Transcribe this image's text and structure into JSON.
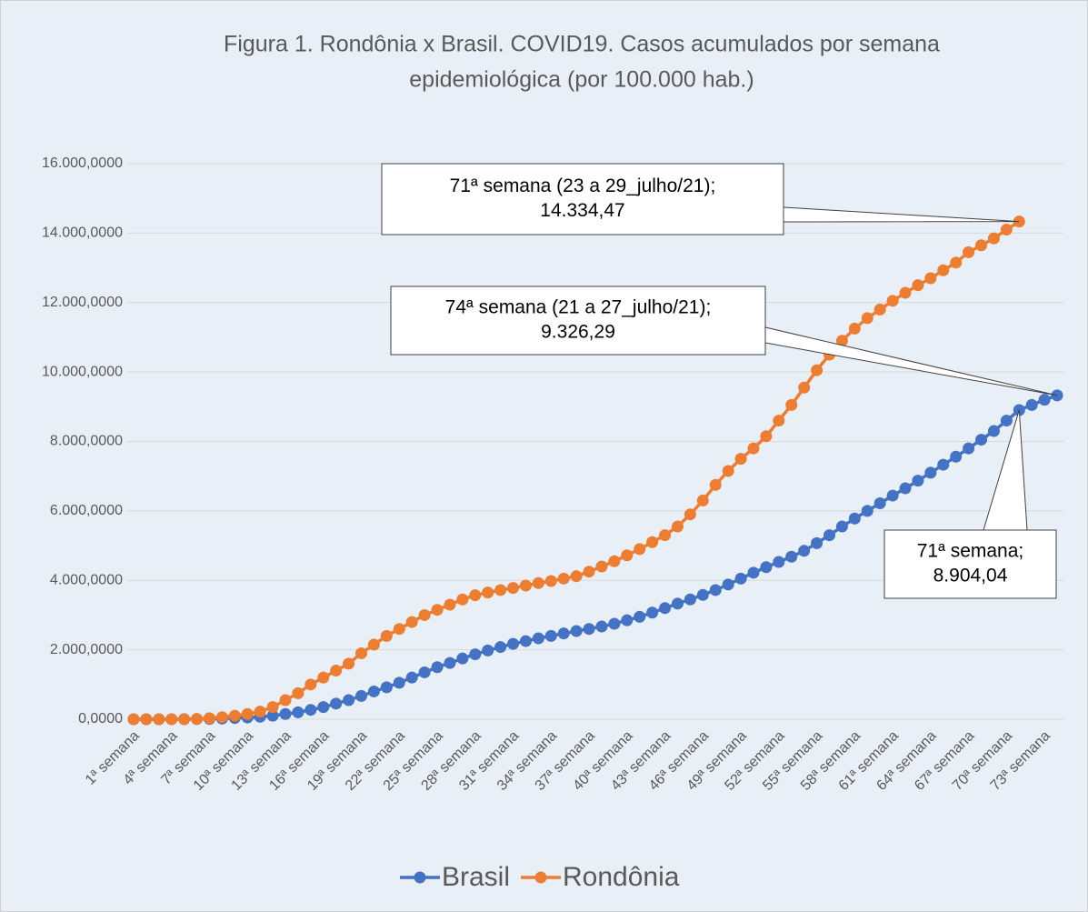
{
  "chart_data": {
    "type": "line",
    "title": [
      "Figura 1. Rondônia x Brasil. COVID19. Casos acumulados por semana",
      "epidemiológica (por 100.000 hab.)"
    ],
    "categories": [
      "1ª semana",
      null,
      null,
      "4ª semana",
      null,
      null,
      "7ª semana",
      null,
      null,
      "10ª semana",
      null,
      null,
      "13ª semana",
      null,
      null,
      "16ª semana",
      null,
      null,
      "19ª semana",
      null,
      null,
      "22ª semana",
      null,
      null,
      "25ª semana",
      null,
      null,
      "28ª semana",
      null,
      null,
      "31ª semana",
      null,
      null,
      "34ª semana",
      null,
      null,
      "37ª semana",
      null,
      null,
      "40ª semana",
      null,
      null,
      "43ª semana",
      null,
      null,
      "46ª semana",
      null,
      null,
      "49ª semana",
      null,
      null,
      "52ª semana",
      null,
      null,
      "55ª semana",
      null,
      null,
      "58ª semana",
      null,
      null,
      "61ª semana",
      null,
      null,
      "64ª semana",
      null,
      null,
      "67ª semana",
      null,
      null,
      "70ª semana",
      null,
      null,
      "73ª semana",
      null
    ],
    "series": [
      {
        "name": "Brasil",
        "color": "#4472c4",
        "values": [
          0,
          0,
          0,
          1,
          2,
          5,
          10,
          20,
          35,
          50,
          70,
          100,
          150,
          200,
          270,
          350,
          450,
          550,
          670,
          800,
          920,
          1050,
          1200,
          1350,
          1500,
          1620,
          1750,
          1870,
          1980,
          2080,
          2170,
          2250,
          2330,
          2400,
          2470,
          2540,
          2600,
          2670,
          2750,
          2850,
          2950,
          3070,
          3200,
          3330,
          3450,
          3580,
          3720,
          3880,
          4050,
          4220,
          4380,
          4530,
          4680,
          4850,
          5070,
          5300,
          5550,
          5780,
          6000,
          6220,
          6440,
          6650,
          6870,
          7100,
          7330,
          7560,
          7800,
          8050,
          8300,
          8600,
          8904.04,
          9050,
          9200,
          9326.29
        ]
      },
      {
        "name": "Rondônia",
        "color": "#ed7d31",
        "values": [
          0,
          0,
          0,
          0,
          0,
          5,
          30,
          60,
          100,
          150,
          220,
          350,
          550,
          750,
          1000,
          1200,
          1400,
          1600,
          1900,
          2150,
          2400,
          2600,
          2800,
          3000,
          3150,
          3300,
          3450,
          3570,
          3650,
          3720,
          3780,
          3850,
          3920,
          3980,
          4050,
          4120,
          4250,
          4400,
          4550,
          4720,
          4900,
          5100,
          5300,
          5550,
          5900,
          6300,
          6750,
          7150,
          7500,
          7800,
          8150,
          8600,
          9050,
          9550,
          10050,
          10500,
          10900,
          11250,
          11550,
          11800,
          12050,
          12280,
          12500,
          12700,
          12930,
          13150,
          13450,
          13650,
          13850,
          14100,
          14334.47,
          null,
          null,
          null
        ]
      }
    ],
    "ylim": [
      0,
      16000
    ],
    "yticks": [
      {
        "value": 0,
        "label": "0,0000"
      },
      {
        "value": 2000,
        "label": "2.000,0000"
      },
      {
        "value": 4000,
        "label": "4.000,0000"
      },
      {
        "value": 6000,
        "label": "6.000,0000"
      },
      {
        "value": 8000,
        "label": "8.000,0000"
      },
      {
        "value": 10000,
        "label": "10.000,0000"
      },
      {
        "value": 12000,
        "label": "12.000,0000"
      },
      {
        "value": 14000,
        "label": "14.000,0000"
      },
      {
        "value": 16000,
        "label": "16.000,0000"
      }
    ],
    "grid": true,
    "legend": "bottom",
    "annotations": [
      {
        "lines": [
          "71ª semana (23 a 29_julho/21);",
          "14.334,47"
        ]
      },
      {
        "lines": [
          "74ª semana (21 a 27_julho/21);",
          "9.326,29"
        ]
      },
      {
        "lines": [
          "71ª semana;",
          "8.904,04"
        ]
      }
    ]
  }
}
